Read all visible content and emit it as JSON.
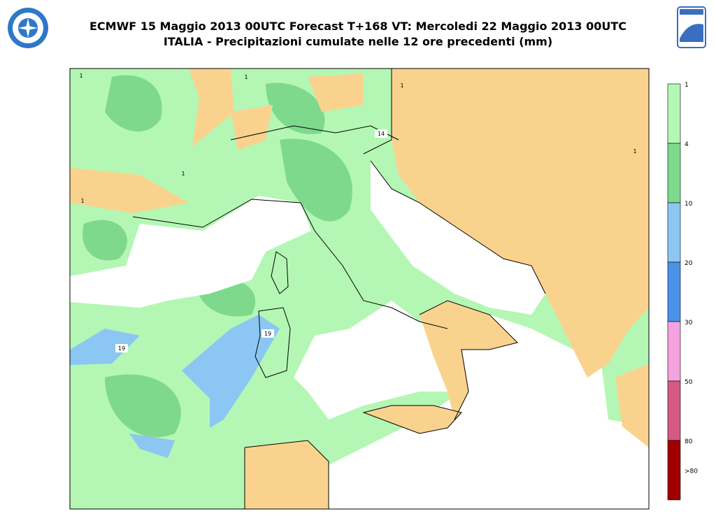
{
  "header": {
    "title": "ECMWF 15 Maggio 2013 00UTC Forecast T+168 VT: Mercoledi 22 Maggio 2013 00UTC",
    "subtitle": "ITALIA - Precipitazioni cumulate nelle 12 ore precedenti (mm)"
  },
  "legend": {
    "colors": [
      "#b4f7b4",
      "#7fd98c",
      "#8cc6f2",
      "#4b93ea",
      "#f5a3de",
      "#d35a82",
      "#a00000"
    ],
    "labels": [
      "1",
      "4",
      "10",
      "20",
      "30",
      "50",
      "80",
      ">80"
    ]
  },
  "map": {
    "labels": [
      "1",
      "1",
      "1",
      "1",
      "1",
      "1",
      "14",
      "19",
      "19"
    ]
  }
}
